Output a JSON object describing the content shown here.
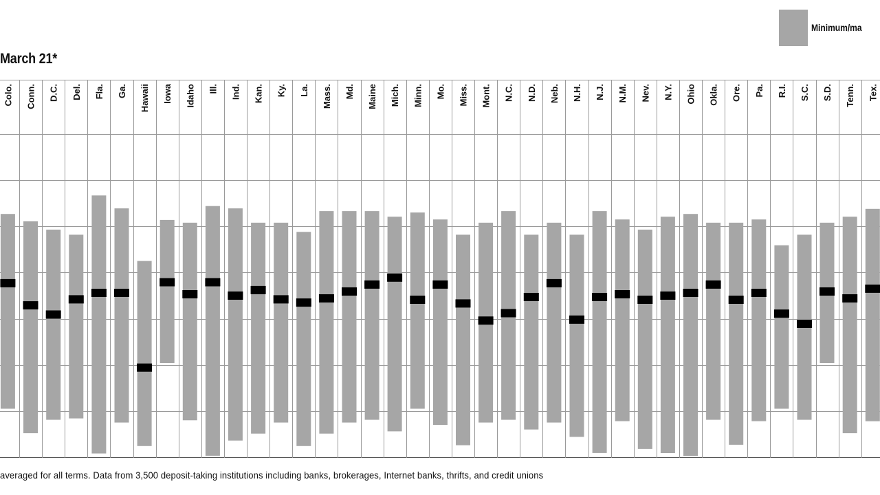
{
  "subtitle": "March 21*",
  "legend": {
    "label": "Minimum/ma"
  },
  "footnote": "averaged for all terms. Data from 3,500 deposit-taking institutions including banks, brokerages, Internet banks, thrifts, and credit unions",
  "colors": {
    "range_bar": "#a6a6a6",
    "average_marker": "#000000",
    "grid": "#999999"
  },
  "chart_data": {
    "type": "bar",
    "subtype": "range-with-marker",
    "categories": [
      "Colo.",
      "Conn.",
      "D.C.",
      "Del.",
      "Fla.",
      "Ga.",
      "Hawaii",
      "Iowa",
      "Idaho",
      "Ill.",
      "Ind.",
      "Kan.",
      "Ky.",
      "La.",
      "Mass.",
      "Md.",
      "Maine",
      "Mich.",
      "Minn.",
      "Mo.",
      "Miss.",
      "Mont.",
      "N.C.",
      "N.D.",
      "Neb.",
      "N.H.",
      "N.J.",
      "N.M.",
      "Nev.",
      "N.Y.",
      "Ohio",
      "Okla.",
      "Ore.",
      "Pa.",
      "R.I.",
      "S.C.",
      "S.D.",
      "Tenn.",
      "Tex."
    ],
    "series": [
      {
        "name": "Minimum/ma",
        "min": [
          1.05,
          0.52,
          0.81,
          0.84,
          0.08,
          0.75,
          0.24,
          2.04,
          0.8,
          0.03,
          0.36,
          0.51,
          0.75,
          0.24,
          0.51,
          0.75,
          0.81,
          0.56,
          1.05,
          0.7,
          0.26,
          0.75,
          0.81,
          0.6,
          0.75,
          0.44,
          0.09,
          0.78,
          0.18,
          0.09,
          0.03,
          0.81,
          0.27,
          0.78,
          1.05,
          0.81,
          2.04,
          0.52,
          0.78
        ],
        "max": [
          5.27,
          5.11,
          4.93,
          4.82,
          5.67,
          5.39,
          4.25,
          5.14,
          5.08,
          5.44,
          5.39,
          5.08,
          5.08,
          4.88,
          5.33,
          5.33,
          5.33,
          5.21,
          5.3,
          5.15,
          4.82,
          5.08,
          5.33,
          4.82,
          5.08,
          4.82,
          5.33,
          5.15,
          4.93,
          5.21,
          5.27,
          5.08,
          5.08,
          5.15,
          4.59,
          4.82,
          5.08,
          5.21,
          5.38
        ]
      },
      {
        "name": "average",
        "values": [
          3.77,
          3.29,
          3.09,
          3.42,
          3.56,
          3.56,
          1.94,
          3.79,
          3.53,
          3.79,
          3.5,
          3.62,
          3.42,
          3.35,
          3.44,
          3.59,
          3.74,
          3.89,
          3.41,
          3.74,
          3.33,
          2.96,
          3.12,
          3.47,
          3.77,
          2.98,
          3.47,
          3.53,
          3.41,
          3.5,
          3.56,
          3.74,
          3.41,
          3.56,
          3.11,
          2.89,
          3.59,
          3.44,
          3.65
        ]
      }
    ],
    "ylim": [
      0,
      7
    ],
    "grid": true,
    "legend_position": "top-right"
  }
}
